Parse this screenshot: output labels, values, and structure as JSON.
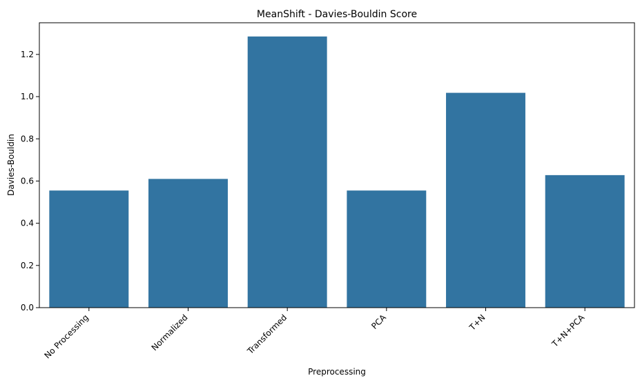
{
  "chart_data": {
    "type": "bar",
    "title": "MeanShift - Davies-Bouldin Score",
    "xlabel": "Preprocessing",
    "ylabel": "Davies-Bouldin",
    "categories": [
      "No Processing",
      "Normalized",
      "Transformed",
      "PCA",
      "T+N",
      "T+N+PCA"
    ],
    "values": [
      0.555,
      0.61,
      1.285,
      0.555,
      1.018,
      0.628
    ],
    "ylim": [
      0,
      1.35
    ],
    "yticks": [
      "0.0",
      "0.2",
      "0.4",
      "0.6",
      "0.8",
      "1.0",
      "1.2"
    ],
    "grid": false,
    "bar_color": "#3274a1"
  }
}
